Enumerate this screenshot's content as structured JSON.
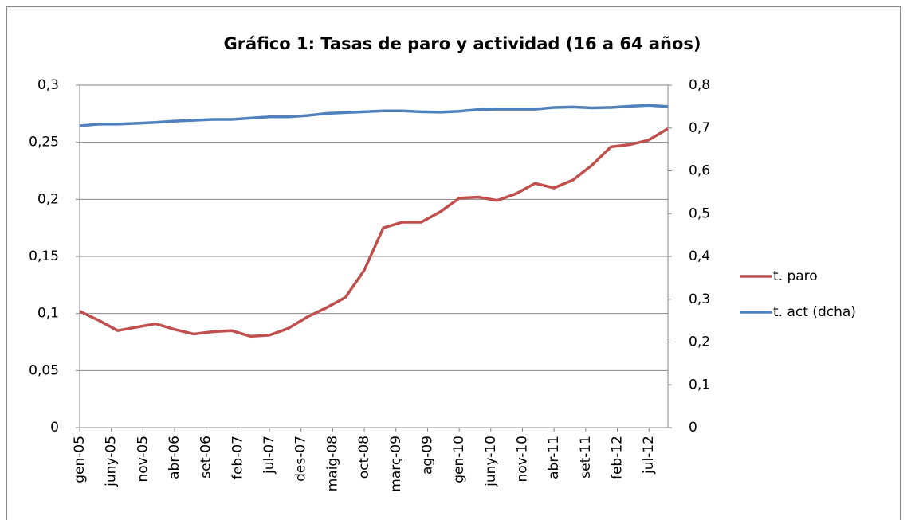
{
  "chart_data": {
    "type": "line",
    "title": "Gráfico 1: Tasas de paro y actividad (16 a 64 años)",
    "x": [
      0,
      3,
      6,
      9,
      12,
      15,
      18,
      21,
      24,
      27,
      30,
      33,
      36,
      39,
      42,
      45,
      48,
      51,
      54,
      57,
      60,
      63,
      66,
      69,
      72,
      75,
      78,
      81,
      84,
      87,
      90,
      93
    ],
    "xlim": [
      0,
      93
    ],
    "xticks": [
      {
        "value": 0,
        "label": "gen-05"
      },
      {
        "value": 5,
        "label": "juny-05"
      },
      {
        "value": 10,
        "label": "nov-05"
      },
      {
        "value": 15,
        "label": "abr-06"
      },
      {
        "value": 20,
        "label": "set-06"
      },
      {
        "value": 25,
        "label": "feb-07"
      },
      {
        "value": 30,
        "label": "jul-07"
      },
      {
        "value": 35,
        "label": "des-07"
      },
      {
        "value": 40,
        "label": "maig-08"
      },
      {
        "value": 45,
        "label": "oct-08"
      },
      {
        "value": 50,
        "label": "març-09"
      },
      {
        "value": 55,
        "label": "ag-09"
      },
      {
        "value": 60,
        "label": "gen-10"
      },
      {
        "value": 65,
        "label": "juny-10"
      },
      {
        "value": 70,
        "label": "nov-10"
      },
      {
        "value": 75,
        "label": "abr-11"
      },
      {
        "value": 80,
        "label": "set-11"
      },
      {
        "value": 85,
        "label": "feb-12"
      },
      {
        "value": 90,
        "label": "jul-12"
      }
    ],
    "ylim": [
      0,
      0.3
    ],
    "yticks": [
      0,
      {
        "value": 0.05,
        "label": "0,05"
      },
      {
        "value": 0.1,
        "label": "0,1"
      },
      {
        "value": 0.15,
        "label": "0,15"
      },
      {
        "value": 0.2,
        "label": "0,2"
      },
      {
        "value": 0.25,
        "label": "0,25"
      },
      {
        "value": 0.3,
        "label": "0,3"
      }
    ],
    "y2lim": [
      0,
      0.8
    ],
    "y2ticks": [
      0,
      {
        "value": 0.1,
        "label": "0,1"
      },
      {
        "value": 0.2,
        "label": "0,2"
      },
      {
        "value": 0.3,
        "label": "0,3"
      },
      {
        "value": 0.4,
        "label": "0,4"
      },
      {
        "value": 0.5,
        "label": "0,5"
      },
      {
        "value": 0.6,
        "label": "0,6"
      },
      {
        "value": 0.7,
        "label": "0,7"
      },
      {
        "value": 0.8,
        "label": "0,8"
      }
    ],
    "grid": true,
    "legend": "right",
    "series": [
      {
        "name": "t. paro",
        "color": "#c0504d",
        "values": [
          0.102,
          0.094,
          0.085,
          0.088,
          0.091,
          0.086,
          0.082,
          0.084,
          0.085,
          0.08,
          0.081,
          0.087,
          0.097,
          0.105,
          0.114,
          0.138,
          0.175,
          0.18,
          0.18,
          0.189,
          0.201,
          0.202,
          0.199,
          0.205,
          0.214,
          0.21,
          0.217,
          0.23,
          0.246,
          0.248,
          0.252,
          0.262
        ]
      },
      {
        "name": "t. act (dcha)",
        "color": "#4f81bd",
        "axis": "y2",
        "values": [
          0.705,
          0.709,
          0.709,
          0.711,
          0.713,
          0.716,
          0.718,
          0.72,
          0.72,
          0.723,
          0.726,
          0.726,
          0.729,
          0.734,
          0.736,
          0.738,
          0.74,
          0.74,
          0.738,
          0.737,
          0.739,
          0.743,
          0.744,
          0.744,
          0.744,
          0.748,
          0.749,
          0.747,
          0.748,
          0.751,
          0.753,
          0.75
        ]
      }
    ]
  }
}
